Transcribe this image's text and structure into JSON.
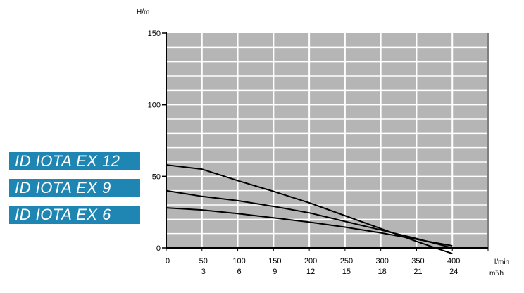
{
  "chart_data": {
    "type": "line",
    "ylabel": "H/m",
    "xlabel_primary": "l/min",
    "xlabel_secondary": "m³/h",
    "ylim": [
      0,
      150
    ],
    "xlim": [
      0,
      450
    ],
    "y_ticks": [
      "0",
      "50",
      "100",
      "150"
    ],
    "x_ticks_primary": [
      "0",
      "50",
      "100",
      "150",
      "200",
      "250",
      "300",
      "350",
      "400"
    ],
    "x_ticks_secondary": [
      "",
      "3",
      "6",
      "9",
      "12",
      "15",
      "18",
      "21",
      "24"
    ],
    "grid": true,
    "legend_entries": [
      "ID IOTA EX 12",
      "ID IOTA EX 9",
      "ID IOTA EX 6"
    ],
    "series": [
      {
        "name": "ID IOTA EX 12",
        "x": [
          0,
          50,
          100,
          150,
          200,
          250,
          300,
          350,
          400
        ],
        "y": [
          58,
          55,
          47,
          39.5,
          31.5,
          22.5,
          13.5,
          4.5,
          -4
        ]
      },
      {
        "name": "ID IOTA EX 9",
        "x": [
          0,
          50,
          100,
          150,
          200,
          250,
          300,
          350,
          400
        ],
        "y": [
          40,
          36,
          33,
          29,
          24.5,
          18.5,
          12.5,
          6.5,
          0
        ]
      },
      {
        "name": "ID IOTA EX 6",
        "x": [
          0,
          50,
          100,
          150,
          200,
          250,
          300,
          350,
          400
        ],
        "y": [
          28,
          26.5,
          24,
          21,
          18,
          14.5,
          10.5,
          6,
          1.5
        ]
      }
    ]
  },
  "colors": {
    "plot_background": "#b5b5b5",
    "grid": "#ffffff",
    "curve": "#000000",
    "legend_background": "#1f86b3",
    "legend_text": "#ffffff"
  }
}
